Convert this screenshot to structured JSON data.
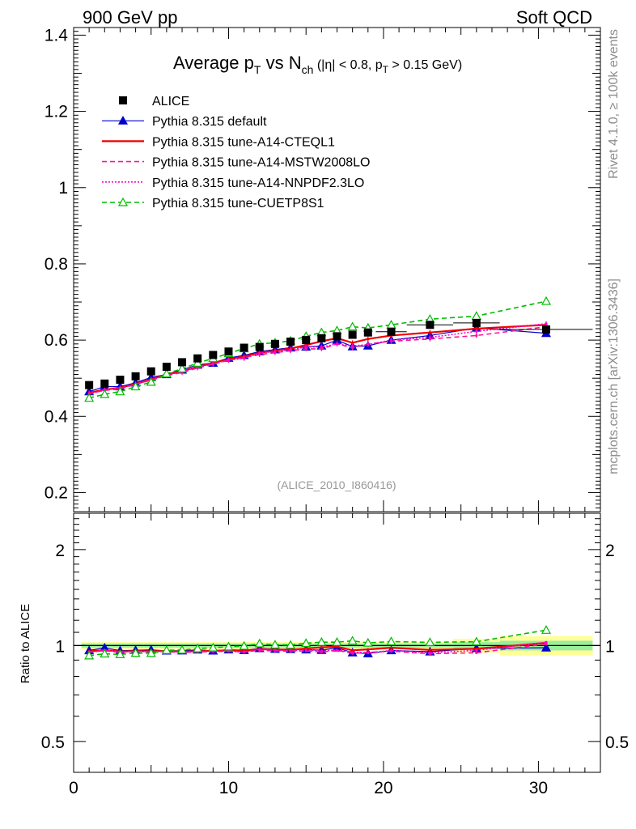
{
  "header": {
    "left": "900 GeV pp",
    "right": "Soft QCD"
  },
  "side_labels": {
    "rivet": "Rivet 4.1.0, ≥ 100k events",
    "mcplots": "mcplots.cern.ch [arXiv:1306.3436]"
  },
  "analysis_id": "(ALICE_2010_I860416)",
  "title": {
    "main": "Average p",
    "sub_T": "T",
    "vs": " vs N",
    "sub_ch": "ch",
    "cut1": " (|η| < 0.8, p",
    "sub_T2": "T",
    "cut2": " > 0.15 GeV)"
  },
  "chart_data": {
    "type": "line",
    "x": [
      1,
      2,
      3,
      4,
      5,
      6,
      7,
      8,
      9,
      10,
      11,
      12,
      13,
      14,
      15,
      16,
      17,
      18,
      19,
      20.5,
      23,
      26,
      30.5
    ],
    "x_bin_edges": [
      [
        0.5,
        1.5
      ],
      [
        1.5,
        2.5
      ],
      [
        2.5,
        3.5
      ],
      [
        3.5,
        4.5
      ],
      [
        4.5,
        5.5
      ],
      [
        5.5,
        6.5
      ],
      [
        6.5,
        7.5
      ],
      [
        7.5,
        8.5
      ],
      [
        8.5,
        9.5
      ],
      [
        9.5,
        10.5
      ],
      [
        10.5,
        11.5
      ],
      [
        11.5,
        12.5
      ],
      [
        12.5,
        13.5
      ],
      [
        13.5,
        14.5
      ],
      [
        14.5,
        15.5
      ],
      [
        15.5,
        16.5
      ],
      [
        16.5,
        17.5
      ],
      [
        17.5,
        18.5
      ],
      [
        18.5,
        19.5
      ],
      [
        19.5,
        21.5
      ],
      [
        21.5,
        24.5
      ],
      [
        24.5,
        27.5
      ],
      [
        27.5,
        33.5
      ]
    ],
    "xlim": [
      0,
      34
    ],
    "xticks": [
      0,
      10,
      20,
      30
    ],
    "main_panel": {
      "ylim": [
        0.15,
        1.42
      ],
      "yticks": [
        0.2,
        0.4,
        0.6,
        0.8,
        1,
        1.2,
        1.4
      ],
      "ytick_labels": [
        "0.2",
        "0.4",
        "0.6",
        "0.8",
        "1",
        "1.2",
        "1.4"
      ]
    },
    "ratio_panel": {
      "ylabel": "Ratio to ALICE",
      "ylim": [
        0.4,
        2.6
      ],
      "log_scale": true,
      "yticks": [
        0.5,
        1,
        2
      ],
      "ytick_labels": [
        "0.5",
        "1",
        "2"
      ],
      "band_inner_halfwidth": [
        0.015,
        0.015,
        0.015,
        0.015,
        0.015,
        0.015,
        0.015,
        0.015,
        0.015,
        0.015,
        0.015,
        0.015,
        0.015,
        0.015,
        0.015,
        0.015,
        0.015,
        0.015,
        0.015,
        0.015,
        0.015,
        0.025,
        0.035
      ],
      "band_outer_halfwidth": [
        0.025,
        0.025,
        0.025,
        0.025,
        0.025,
        0.025,
        0.025,
        0.025,
        0.025,
        0.025,
        0.025,
        0.025,
        0.025,
        0.025,
        0.025,
        0.025,
        0.025,
        0.025,
        0.025,
        0.025,
        0.025,
        0.05,
        0.07
      ]
    },
    "legend_position": "top-left",
    "series": [
      {
        "name": "ALICE",
        "style": "data",
        "color": "#000000",
        "values": [
          0.482,
          0.486,
          0.496,
          0.505,
          0.518,
          0.53,
          0.542,
          0.552,
          0.561,
          0.57,
          0.58,
          0.582,
          0.59,
          0.596,
          0.6,
          0.605,
          0.61,
          0.614,
          0.62,
          0.622,
          0.64,
          0.645,
          0.628
        ]
      },
      {
        "name": "Pythia 8.315 default",
        "style": "solid-triangle",
        "color": "#0000cc",
        "values": [
          0.465,
          0.478,
          0.478,
          0.488,
          0.502,
          0.51,
          0.522,
          0.535,
          0.54,
          0.553,
          0.56,
          0.57,
          0.575,
          0.58,
          0.582,
          0.585,
          0.6,
          0.583,
          0.585,
          0.6,
          0.612,
          0.632,
          0.618
        ]
      },
      {
        "name": "Pythia 8.315 tune-A14-CTEQL1",
        "style": "solid",
        "color": "#ee0000",
        "values": [
          0.462,
          0.47,
          0.475,
          0.485,
          0.497,
          0.51,
          0.518,
          0.53,
          0.54,
          0.55,
          0.557,
          0.567,
          0.572,
          0.578,
          0.587,
          0.597,
          0.605,
          0.593,
          0.603,
          0.612,
          0.62,
          0.63,
          0.64
        ]
      },
      {
        "name": "Pythia 8.315 tune-A14-MSTW2008LO",
        "style": "dashed",
        "color": "#ff1493",
        "values": [
          0.46,
          0.468,
          0.472,
          0.484,
          0.495,
          0.507,
          0.515,
          0.527,
          0.537,
          0.547,
          0.554,
          0.562,
          0.567,
          0.572,
          0.577,
          0.577,
          0.59,
          0.58,
          0.59,
          0.597,
          0.603,
          0.612,
          0.635
        ]
      },
      {
        "name": "Pythia 8.315 tune-A14-NNPDF2.3LO",
        "style": "dotted",
        "color": "#ff00cc",
        "values": [
          0.458,
          0.47,
          0.474,
          0.484,
          0.496,
          0.508,
          0.517,
          0.53,
          0.538,
          0.548,
          0.552,
          0.566,
          0.57,
          0.574,
          0.582,
          0.582,
          0.59,
          0.585,
          0.588,
          0.6,
          0.607,
          0.623,
          0.643
        ]
      },
      {
        "name": "Pythia 8.315 tune-CUETP8S1",
        "style": "dashed-open-triangle",
        "color": "#00bb00",
        "values": [
          0.448,
          0.458,
          0.465,
          0.478,
          0.49,
          0.512,
          0.525,
          0.54,
          0.552,
          0.565,
          0.578,
          0.59,
          0.593,
          0.598,
          0.61,
          0.62,
          0.625,
          0.635,
          0.632,
          0.64,
          0.655,
          0.663,
          0.702
        ]
      }
    ]
  }
}
